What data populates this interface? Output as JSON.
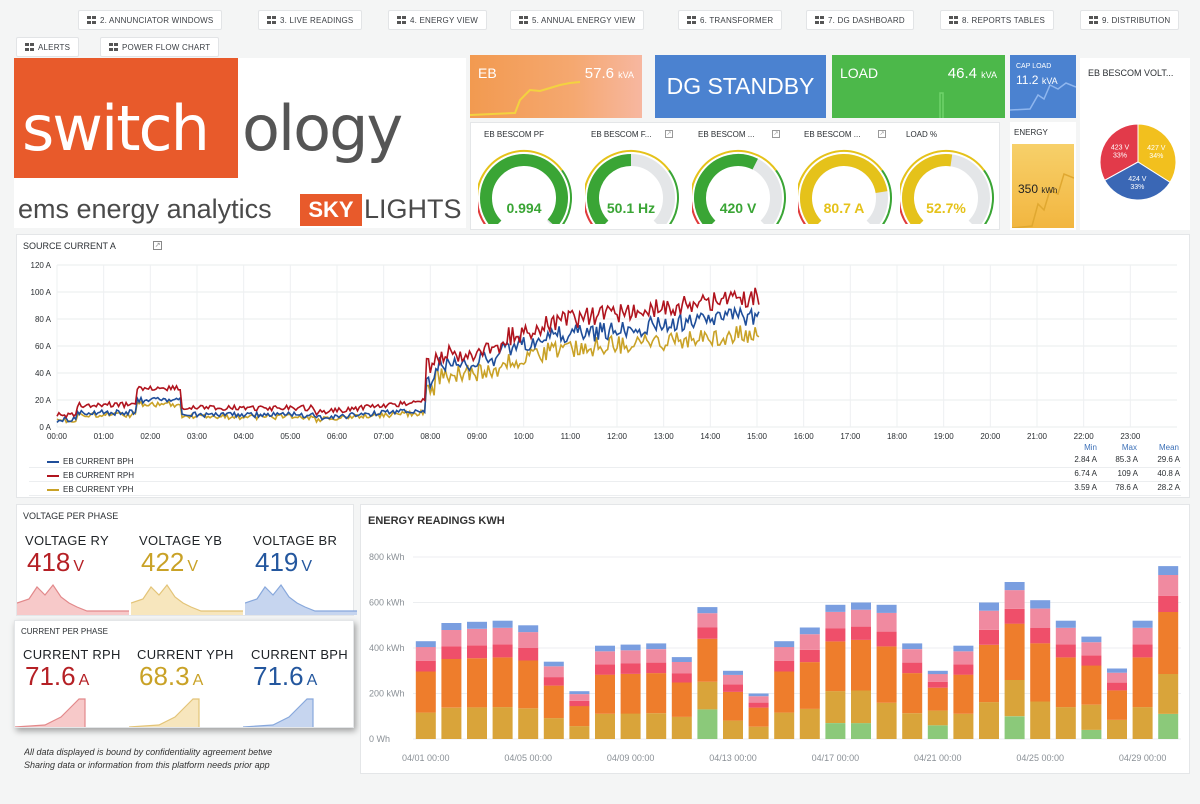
{
  "nav": [
    {
      "label": "2. ANNUNCIATOR WINDOWS"
    },
    {
      "label": "3. LIVE READINGS"
    },
    {
      "label": "4. ENERGY VIEW"
    },
    {
      "label": "5. ANNUAL ENERGY VIEW"
    },
    {
      "label": "6. TRANSFORMER"
    },
    {
      "label": "7. DG DASHBOARD"
    },
    {
      "label": "8. REPORTS TABLES"
    },
    {
      "label": "9. DISTRIBUTION"
    },
    {
      "label": "ALERTS"
    },
    {
      "label": "POWER FLOW CHART"
    }
  ],
  "brand": {
    "logo_text": "switchology",
    "tagline": "ems energy analytics",
    "sub_logo": "SKY",
    "sub_text": "LIGHTS",
    "logo_color": "#e85a2b"
  },
  "kpis": {
    "eb": {
      "label": "EB",
      "value": "57.6",
      "unit": "kVA"
    },
    "dg": {
      "label": "DG STANDBY"
    },
    "load": {
      "label": "LOAD",
      "value": "46.4",
      "unit": "kVA"
    },
    "cap_load": {
      "label": "CAP LOAD",
      "value": "11.2",
      "unit": "kVA"
    },
    "energy": {
      "label": "ENERGY",
      "value": "350",
      "unit": "kWh"
    }
  },
  "gauges": [
    {
      "title": "EB BESCOM PF",
      "value": "0.994",
      "level": 0.99,
      "color": "#3aa535"
    },
    {
      "title": "EB BESCOM F...",
      "value": "50.1 Hz",
      "level": 0.5,
      "color": "#3aa535"
    },
    {
      "title": "EB BESCOM ...",
      "value": "420 V",
      "level": 0.6,
      "color": "#3aa535"
    },
    {
      "title": "EB BESCOM ...",
      "value": "80.7 A",
      "level": 0.8,
      "color": "#e5c21a"
    },
    {
      "title": "LOAD %",
      "value": "52.7%",
      "level": 0.53,
      "color": "#e5c21a"
    }
  ],
  "pie": {
    "title": "EB BESCOM VOLT...",
    "slices": [
      {
        "voltage": "423 V",
        "pct": "33%",
        "value": 33,
        "color": "#e23a4a"
      },
      {
        "voltage": "427 V",
        "pct": "34%",
        "value": 34,
        "color": "#f2c01e"
      },
      {
        "voltage": "424 V",
        "pct": "33%",
        "value": 33,
        "color": "#3a67b5"
      }
    ]
  },
  "source_current": {
    "title": "SOURCE CURRENT A",
    "y_ticks": [
      "0 A",
      "20 A",
      "40 A",
      "60 A",
      "80 A",
      "100 A",
      "120 A"
    ],
    "x_ticks": [
      "00:00",
      "01:00",
      "02:00",
      "03:00",
      "04:00",
      "05:00",
      "06:00",
      "07:00",
      "08:00",
      "09:00",
      "10:00",
      "11:00",
      "12:00",
      "13:00",
      "14:00",
      "15:00",
      "16:00",
      "17:00",
      "18:00",
      "19:00",
      "20:00",
      "21:00",
      "22:00",
      "23:00"
    ],
    "stat_headers": {
      "min": "Min",
      "max": "Max",
      "mean": "Mean"
    },
    "legend": [
      {
        "name": "EB CURRENT BPH",
        "color": "#1f4e9a",
        "min": "2.84 A",
        "max": "85.3 A",
        "mean": "29.6 A"
      },
      {
        "name": "EB CURRENT RPH",
        "color": "#b0141e",
        "min": "6.74 A",
        "max": "109 A",
        "mean": "40.8 A"
      },
      {
        "name": "EB CURRENT YPH",
        "color": "#c9a227",
        "min": "3.59 A",
        "max": "78.6 A",
        "mean": "28.2 A"
      }
    ]
  },
  "voltage_panel": {
    "title": "VOLTAGE PER PHASE",
    "items": [
      {
        "label": "VOLTAGE RY",
        "value": "418",
        "unit": "V",
        "color": "#b52025"
      },
      {
        "label": "VOLTAGE YB",
        "value": "422",
        "unit": "V",
        "color": "#c9a227"
      },
      {
        "label": "VOLTAGE BR",
        "value": "419",
        "unit": "V",
        "color": "#24579e"
      }
    ]
  },
  "current_panel": {
    "title": "CURRENT PER PHASE",
    "items": [
      {
        "label": "CURRENT RPH",
        "value": "71.6",
        "unit": "A",
        "color": "#b52025"
      },
      {
        "label": "CURRENT YPH",
        "value": "68.3",
        "unit": "A",
        "color": "#c9a227"
      },
      {
        "label": "CURRENT BPH",
        "value": "71.6",
        "unit": "A",
        "color": "#24579e"
      }
    ]
  },
  "disclaimer": {
    "line1": "All data displayed is bound by confidentiality agreement betwe",
    "line2": "Sharing data or information from this platform needs prior app"
  },
  "chart_data": {
    "type": "bar",
    "title": "ENERGY READINGS KWH",
    "y_ticks": [
      "0 Wh",
      "200 kWh",
      "400 kWh",
      "600 kWh",
      "800 kWh"
    ],
    "ylim": [
      0,
      800
    ],
    "x_ticks": [
      "04/01 00:00",
      "04/05 00:00",
      "04/09 00:00",
      "04/13 00:00",
      "04/17 00:00",
      "04/21 00:00",
      "04/25 00:00",
      "04/29 00:00"
    ],
    "stack_colors": [
      "#8bc97a",
      "#d9a43a",
      "#ee7d2c",
      "#ef4f6a",
      "#f08aa0",
      "#7a9ee0"
    ],
    "totals": [
      430,
      510,
      515,
      520,
      500,
      340,
      210,
      410,
      415,
      420,
      360,
      580,
      300,
      200,
      430,
      490,
      590,
      600,
      590,
      420,
      300,
      410,
      600,
      690,
      610,
      520,
      450,
      310,
      520,
      760
    ],
    "green_base": [
      0,
      0,
      0,
      0,
      0,
      0,
      0,
      0,
      0,
      0,
      0,
      130,
      0,
      0,
      0,
      0,
      70,
      70,
      0,
      0,
      60,
      0,
      0,
      100,
      0,
      0,
      40,
      0,
      0,
      110
    ]
  }
}
